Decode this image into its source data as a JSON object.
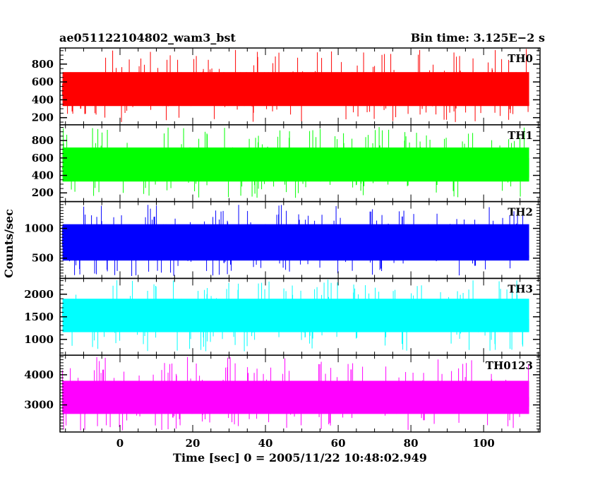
{
  "header": {
    "left_title": "ae051122104802_wam3_bst",
    "right_title": "Bin time: 3.125E−2 s"
  },
  "axes": {
    "ylabel": "Counts/sec",
    "xlabel": "Time [sec] 0 = 2005/11/22 10:48:02.949"
  },
  "chart_data": {
    "type": "line",
    "bin_time_s": 0.03125,
    "x_range": [
      -16.5,
      115.5
    ],
    "data_x_range": [
      -15.8,
      112.5
    ],
    "x_ticks": [
      0,
      20,
      40,
      60,
      80,
      100
    ],
    "panels": [
      {
        "name": "TH0",
        "color": "#ff0000",
        "ylim": [
          120,
          980
        ],
        "y_ticks": [
          200,
          400,
          600,
          800
        ],
        "band": [
          150,
          970
        ],
        "core": [
          330,
          710
        ],
        "mid": 520
      },
      {
        "name": "TH1",
        "color": "#00ff00",
        "ylim": [
          100,
          980
        ],
        "y_ticks": [
          200,
          400,
          600,
          800
        ],
        "band": [
          140,
          960
        ],
        "core": [
          330,
          720
        ],
        "mid": 520
      },
      {
        "name": "TH2",
        "color": "#0000ff",
        "ylim": [
          160,
          1450
        ],
        "y_ticks": [
          500,
          1000
        ],
        "band": [
          200,
          1400
        ],
        "core": [
          460,
          1070
        ],
        "mid": 760
      },
      {
        "name": "TH3",
        "color": "#00ffff",
        "ylim": [
          650,
          2350
        ],
        "y_ticks": [
          1000,
          1500,
          2000
        ],
        "band": [
          730,
          2330
        ],
        "core": [
          1160,
          1900
        ],
        "mid": 1530
      },
      {
        "name": "TH0123",
        "color": "#ff00ff",
        "ylim": [
          2100,
          4650
        ],
        "y_ticks": [
          3000,
          4000
        ],
        "band": [
          2150,
          4600
        ],
        "core": [
          2700,
          3800
        ],
        "mid": 3250
      }
    ]
  }
}
